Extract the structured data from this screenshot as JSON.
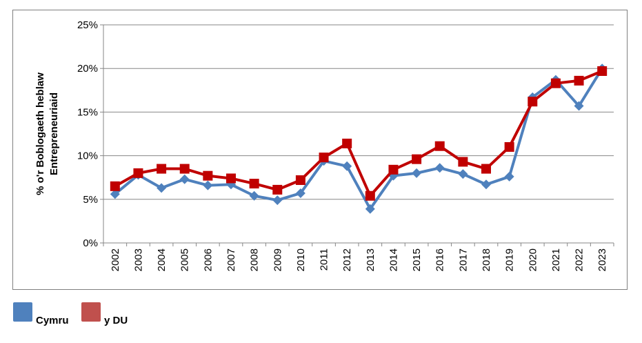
{
  "chart_data": {
    "type": "line",
    "title": "",
    "xlabel": "",
    "ylabel_lines": [
      "% o'r Boblogaeth heblaw",
      "Entrepreneuriaid"
    ],
    "ylim": [
      0,
      25
    ],
    "yticks": [
      0,
      5,
      10,
      15,
      20,
      25
    ],
    "ytick_labels": [
      "0%",
      "5%",
      "10%",
      "15%",
      "20%",
      "25%"
    ],
    "grid": true,
    "legend_position": "bottom-left",
    "categories": [
      "2002",
      "2003",
      "2004",
      "2005",
      "2006",
      "2007",
      "2008",
      "2009",
      "2010",
      "2011",
      "2012",
      "2013",
      "2014",
      "2015",
      "2016",
      "2017",
      "2018",
      "2019",
      "2020",
      "2021",
      "2022",
      "2023"
    ],
    "series": [
      {
        "name": "Cymru",
        "color": "#4f81bd",
        "legend_color": "#4f81bd",
        "marker": "diamond",
        "values": [
          5.6,
          7.8,
          6.3,
          7.3,
          6.6,
          6.7,
          5.4,
          4.9,
          5.7,
          9.4,
          8.8,
          3.9,
          7.7,
          8.0,
          8.6,
          7.9,
          6.7,
          7.6,
          16.7,
          18.7,
          15.7,
          20.0
        ]
      },
      {
        "name": "y DU",
        "color": "#c00000",
        "legend_color": "#c0504d",
        "marker": "square",
        "values": [
          6.5,
          8.0,
          8.5,
          8.5,
          7.7,
          7.4,
          6.8,
          6.1,
          7.2,
          9.8,
          11.4,
          5.4,
          8.4,
          9.6,
          11.1,
          9.3,
          8.5,
          11.0,
          16.2,
          18.3,
          18.6,
          19.7
        ]
      }
    ]
  }
}
